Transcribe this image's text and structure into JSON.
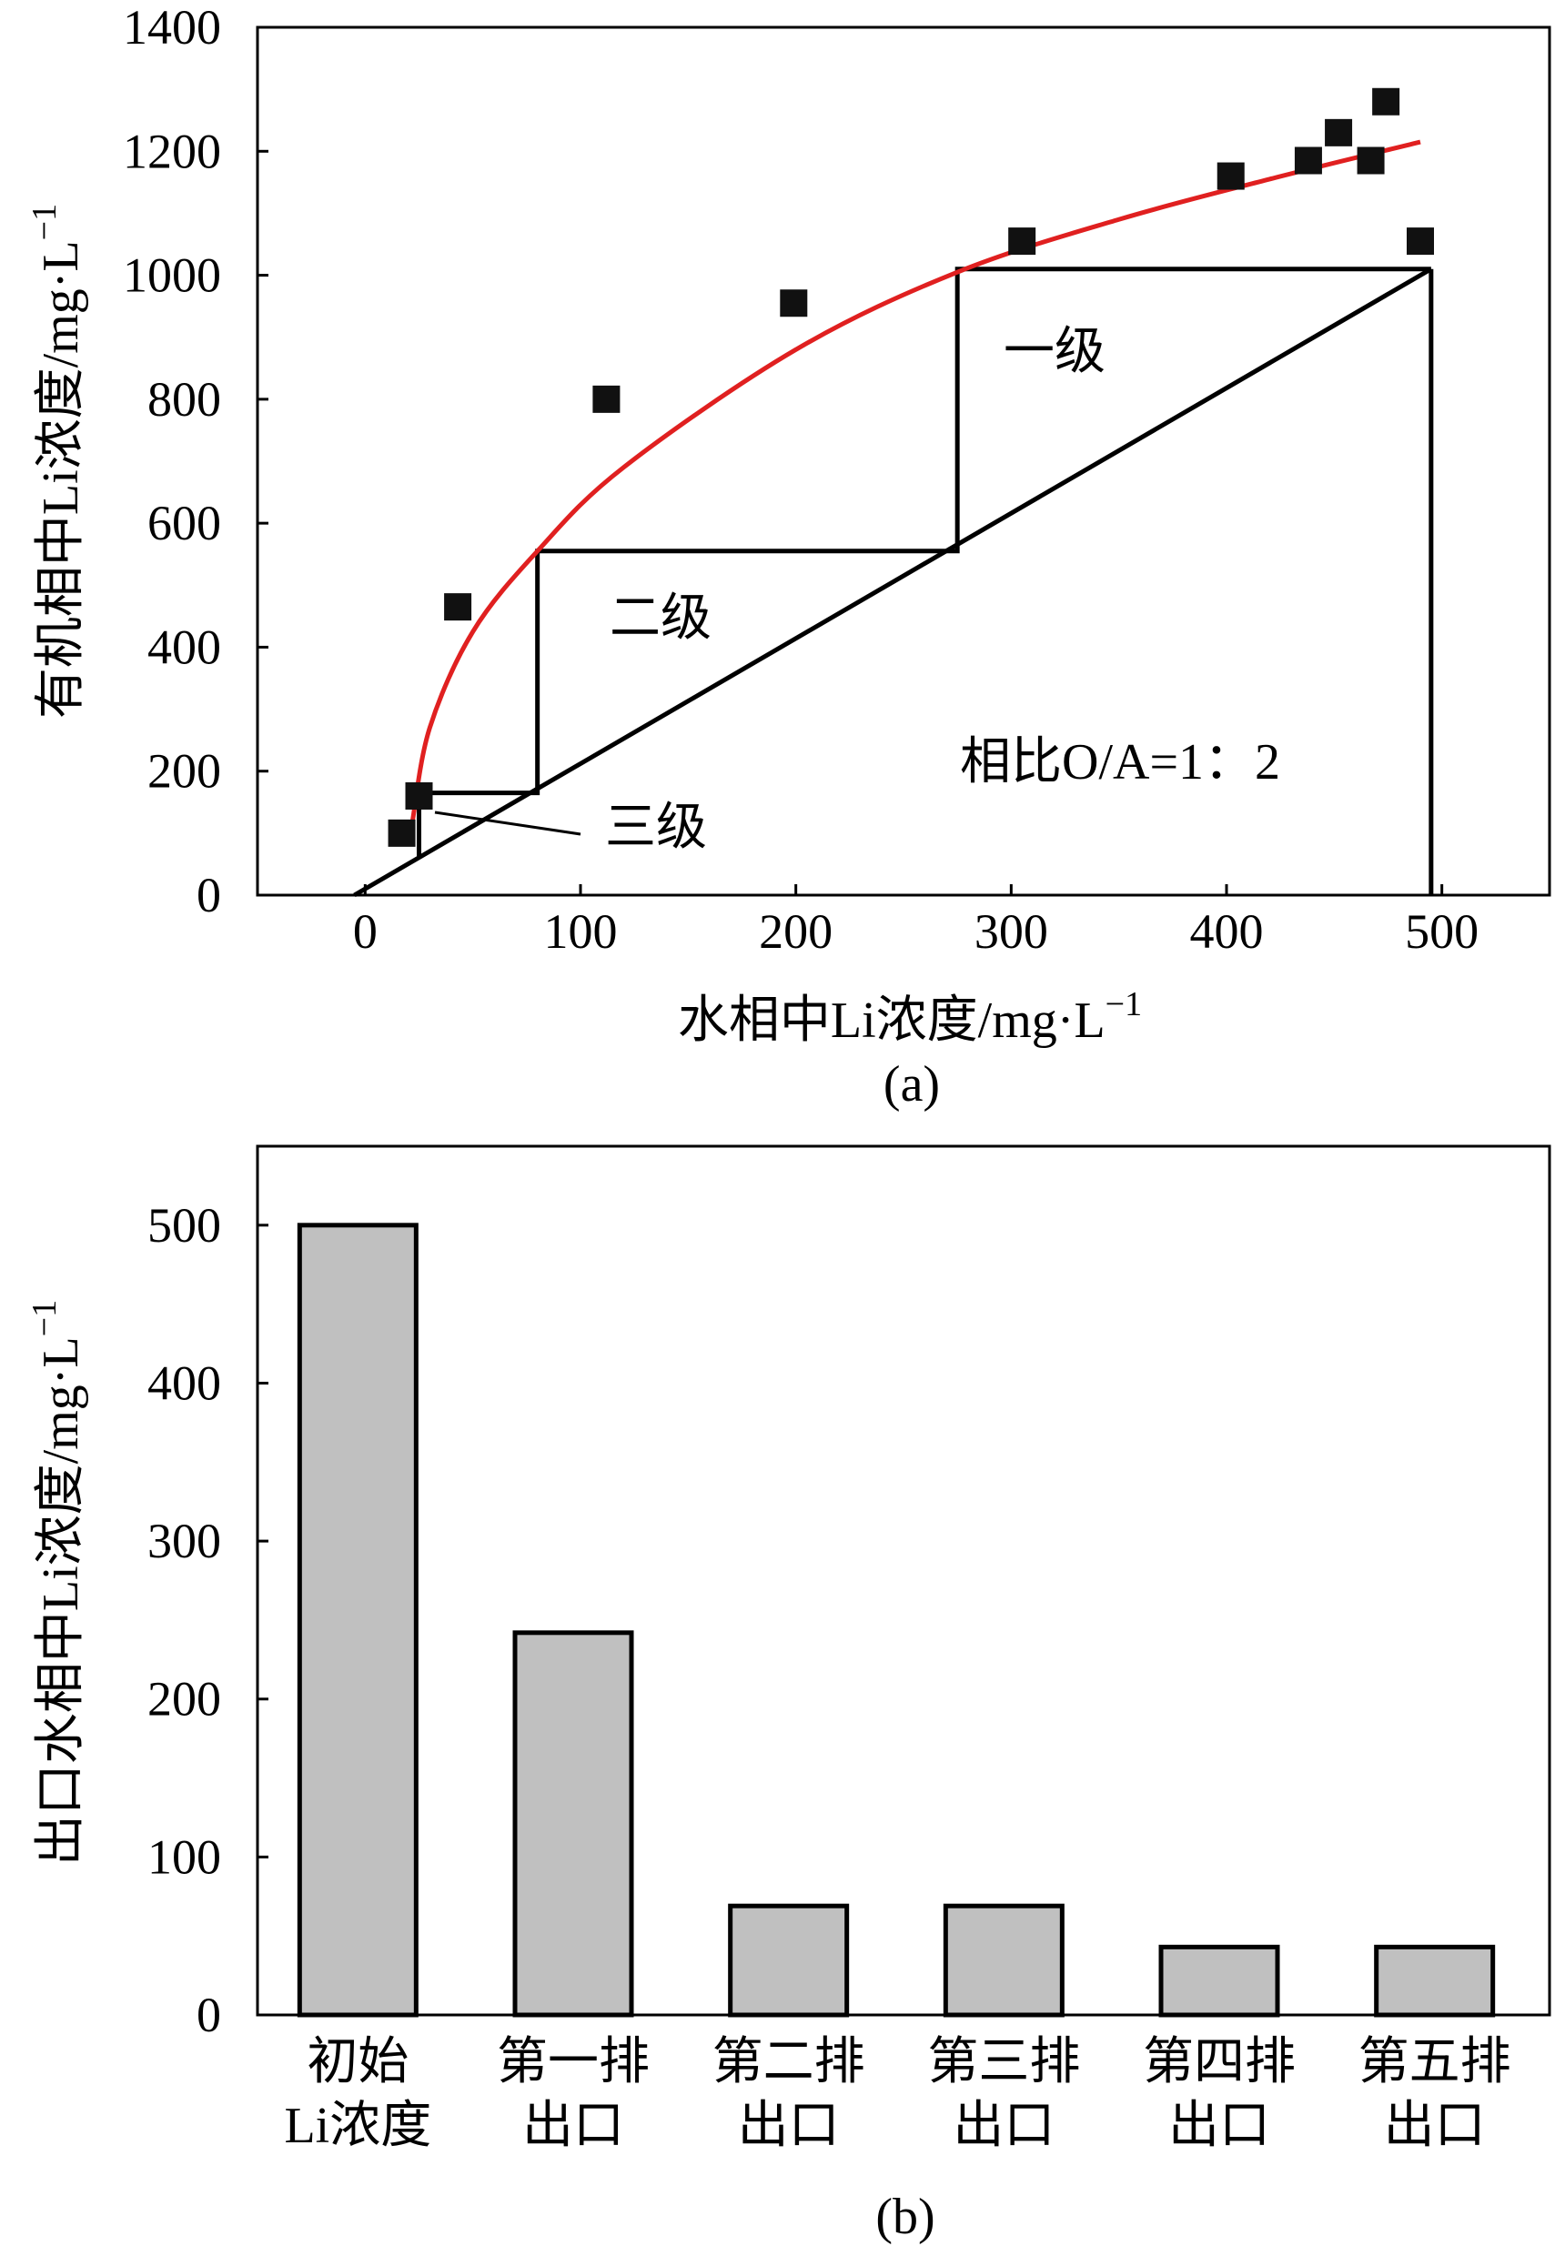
{
  "chart_data": [
    {
      "type": "scatter",
      "panel_label": "(a)",
      "xlabel": "水相中Li浓度/mg·L",
      "xlabel_sup": "−1",
      "ylabel": "有机相中Li浓度/mg·L",
      "ylabel_sup": "−1",
      "xlim": [
        -50,
        550
      ],
      "ylim": [
        0,
        1400
      ],
      "xticks": [
        0,
        100,
        200,
        300,
        400,
        500
      ],
      "yticks": [
        0,
        200,
        400,
        600,
        800,
        1000,
        1200,
        1400
      ],
      "points": [
        {
          "x": 17,
          "y": 100
        },
        {
          "x": 25,
          "y": 160
        },
        {
          "x": 43,
          "y": 465
        },
        {
          "x": 112,
          "y": 800
        },
        {
          "x": 199,
          "y": 955
        },
        {
          "x": 305,
          "y": 1055
        },
        {
          "x": 402,
          "y": 1160
        },
        {
          "x": 438,
          "y": 1185
        },
        {
          "x": 452,
          "y": 1230
        },
        {
          "x": 467,
          "y": 1185
        },
        {
          "x": 474,
          "y": 1280
        },
        {
          "x": 490,
          "y": 1055
        }
      ],
      "fit_curve": {
        "color": "#e02020",
        "x": [
          22,
          30,
          50,
          80,
          120,
          200,
          275,
          350,
          420,
          490
        ],
        "y": [
          120,
          270,
          425,
          555,
          690,
          880,
          1005,
          1090,
          1155,
          1215
        ]
      },
      "operating_line": {
        "x": [
          -5,
          495
        ],
        "y": [
          0,
          1010
        ]
      },
      "stages": {
        "x": [
          495,
          275,
          275,
          80,
          80,
          25,
          25
        ],
        "y": [
          1010,
          1010,
          555,
          555,
          165,
          165,
          60
        ]
      },
      "vertical_line": {
        "x": 495,
        "y": [
          0,
          1010
        ]
      },
      "annotations": {
        "stage1": "一级",
        "stage2": "二级",
        "stage3": "三级",
        "phase_ratio": "相比O/A=1：2"
      }
    },
    {
      "type": "bar",
      "panel_label": "(b)",
      "ylabel": "出口水相中Li浓度/mg·L",
      "ylabel_sup": "−1",
      "ylim": [
        0,
        550
      ],
      "yticks": [
        0,
        100,
        200,
        300,
        400,
        500
      ],
      "categories": [
        [
          "初始",
          "Li浓度"
        ],
        [
          "第一排",
          "出口"
        ],
        [
          "第二排",
          "出口"
        ],
        [
          "第三排",
          "出口"
        ],
        [
          "第四排",
          "出口"
        ],
        [
          "第五排",
          "出口"
        ]
      ],
      "values": [
        500,
        242,
        69,
        69,
        43,
        43
      ],
      "bar_color": "#c0c0c0"
    }
  ]
}
